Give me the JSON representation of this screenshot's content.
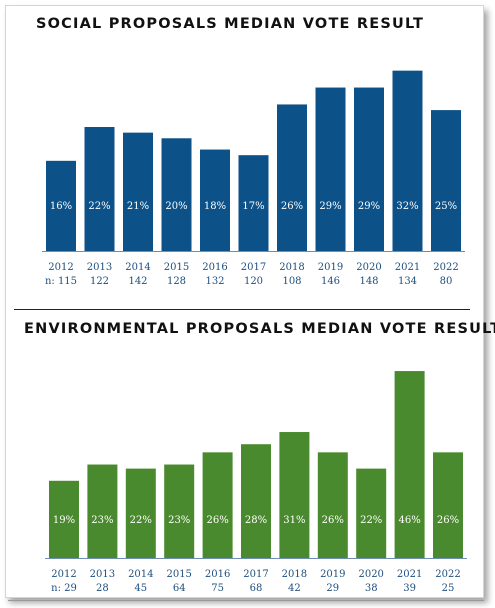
{
  "chart_data": [
    {
      "type": "bar",
      "title": "SOCIAL PROPOSALS MEDIAN VOTE RESULT",
      "categories": [
        "2012",
        "2013",
        "2014",
        "2015",
        "2016",
        "2017",
        "2018",
        "2019",
        "2020",
        "2021",
        "2022"
      ],
      "n_prefix": "n: ",
      "n_values": [
        "115",
        "122",
        "142",
        "128",
        "132",
        "120",
        "108",
        "146",
        "148",
        "134",
        "80"
      ],
      "values": [
        16,
        22,
        21,
        20,
        18,
        17,
        26,
        29,
        29,
        32,
        25
      ],
      "value_labels": [
        "16%",
        "22%",
        "21%",
        "20%",
        "18%",
        "17%",
        "26%",
        "29%",
        "29%",
        "32%",
        "25%"
      ],
      "value_unit": "%",
      "ylim": [
        0,
        33
      ],
      "grid": false,
      "colors": {
        "bar": "#0c5288",
        "label": "#ffffff",
        "tick": "#1e4f7e"
      }
    },
    {
      "type": "bar",
      "title": "ENVIRONMENTAL PROPOSALS MEDIAN VOTE RESULT",
      "categories": [
        "2012",
        "2013",
        "2014",
        "2015",
        "2016",
        "2017",
        "2018",
        "2019",
        "2020",
        "2021",
        "2022"
      ],
      "n_prefix": "n: ",
      "n_values": [
        "29",
        "28",
        "45",
        "64",
        "75",
        "68",
        "42",
        "29",
        "38",
        "39",
        "25"
      ],
      "values": [
        19,
        23,
        22,
        23,
        26,
        28,
        31,
        26,
        22,
        46,
        26
      ],
      "value_labels": [
        "19%",
        "23%",
        "22%",
        "23%",
        "26%",
        "28%",
        "31%",
        "26%",
        "22%",
        "46%",
        "26%"
      ],
      "value_unit": "%",
      "ylim": [
        0,
        47
      ],
      "grid": false,
      "colors": {
        "bar": "#4a8a2e",
        "label": "#ffffff",
        "tick": "#1e4f7e"
      }
    }
  ]
}
